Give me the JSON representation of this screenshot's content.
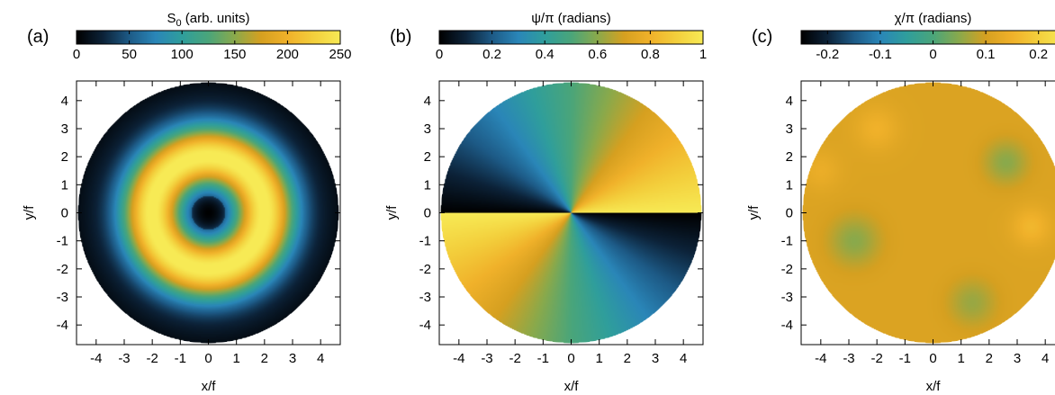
{
  "colormap": [
    "#000000",
    "#0c2238",
    "#1d5a86",
    "#2a86b8",
    "#2f9e9c",
    "#4aa57a",
    "#8aa94b",
    "#d6a020",
    "#f0b12a",
    "#f3cf3c",
    "#f7ea55"
  ],
  "chart_data": [
    {
      "type": "heatmap",
      "panel_label": "(a)",
      "colorbar_title_main": "S",
      "colorbar_title_sub": "0",
      "colorbar_title_rest": " (arb. units)",
      "colorbar_range": [
        0,
        250
      ],
      "colorbar_ticks": [
        "0",
        "50",
        "100",
        "150",
        "200",
        "250"
      ],
      "xlabel": "x/f",
      "ylabel": "y/f",
      "xlim": [
        -4.7,
        4.7
      ],
      "ylim": [
        -4.7,
        4.7
      ],
      "x_ticks": [
        "-4",
        "-3",
        "-2",
        "-1",
        "0",
        "1",
        "2",
        "3",
        "4"
      ],
      "y_ticks": [
        "4",
        "3",
        "2",
        "1",
        "0",
        "-1",
        "-2",
        "-3",
        "-4"
      ],
      "aperture_radius": 4.65,
      "field": "ring",
      "ring_radius": 2.0
    },
    {
      "type": "heatmap",
      "panel_label": "(b)",
      "colorbar_title_main": "ψ/π (radians)",
      "colorbar_title_sub": "",
      "colorbar_title_rest": "",
      "colorbar_range": [
        0,
        1
      ],
      "colorbar_ticks": [
        "0",
        "0.2",
        "0.4",
        "0.6",
        "0.8",
        "1"
      ],
      "xlabel": "x/f",
      "ylabel": "y/f",
      "xlim": [
        -4.7,
        4.7
      ],
      "ylim": [
        -4.7,
        4.7
      ],
      "x_ticks": [
        "-4",
        "-3",
        "-2",
        "-1",
        "0",
        "1",
        "2",
        "3",
        "4"
      ],
      "y_ticks": [
        "4",
        "3",
        "2",
        "1",
        "0",
        "-1",
        "-2",
        "-3",
        "-4"
      ],
      "aperture_radius": 4.65,
      "field": "azimuth"
    },
    {
      "type": "heatmap",
      "panel_label": "(c)",
      "colorbar_title_main": "χ/π (radians)",
      "colorbar_title_sub": "",
      "colorbar_title_rest": "",
      "colorbar_range": [
        -0.25,
        0.25
      ],
      "colorbar_ticks": [
        "-0.2",
        "-0.1",
        "0",
        "0.1",
        "0.2"
      ],
      "xlabel": "x/f",
      "ylabel": "y/f",
      "xlim": [
        -4.7,
        4.7
      ],
      "ylim": [
        -4.7,
        4.7
      ],
      "x_ticks": [
        "-4",
        "-3",
        "-2",
        "-1",
        "0",
        "1",
        "2",
        "3",
        "4"
      ],
      "y_ticks": [
        "4",
        "3",
        "2",
        "1",
        "0",
        "-1",
        "-2",
        "-3",
        "-4"
      ],
      "aperture_radius": 4.65,
      "field": "flat"
    }
  ]
}
